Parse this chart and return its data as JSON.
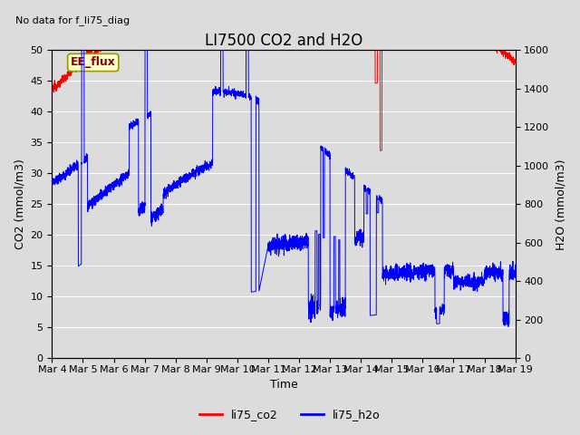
{
  "title": "LI7500 CO2 and H2O",
  "top_left_text": "No data for f_li75_diag",
  "annotation_box": "EE_flux",
  "xlabel": "Time",
  "ylabel_left": "CO2 (mmol/m3)",
  "ylabel_right": "H2O (mmol/m3)",
  "xlim": [
    0,
    15
  ],
  "ylim_left": [
    0,
    50
  ],
  "ylim_right": [
    0,
    1600
  ],
  "yticks_left": [
    0,
    5,
    10,
    15,
    20,
    25,
    30,
    35,
    40,
    45,
    50
  ],
  "yticks_right": [
    0,
    200,
    400,
    600,
    800,
    1000,
    1200,
    1400,
    1600
  ],
  "xtick_labels": [
    "Mar 4",
    "Mar 5",
    "Mar 6",
    "Mar 7",
    "Mar 8",
    "Mar 9",
    "Mar 10",
    "Mar 11",
    "Mar 12",
    "Mar 13",
    "Mar 14",
    "Mar 15",
    "Mar 16",
    "Mar 17",
    "Mar 18",
    "Mar 19"
  ],
  "legend_entries": [
    "li75_co2",
    "li75_h2o"
  ],
  "legend_colors": [
    "red",
    "blue"
  ],
  "co2_color": "red",
  "h2o_color": "blue",
  "bg_color": "#dcdcdc",
  "plot_bg_color": "#dcdcdc",
  "annotation_bg": "#ffffcc",
  "annotation_border": "#999900",
  "title_fontsize": 12,
  "label_fontsize": 9,
  "tick_fontsize": 8,
  "grid_color": "white",
  "linewidth": 0.7
}
